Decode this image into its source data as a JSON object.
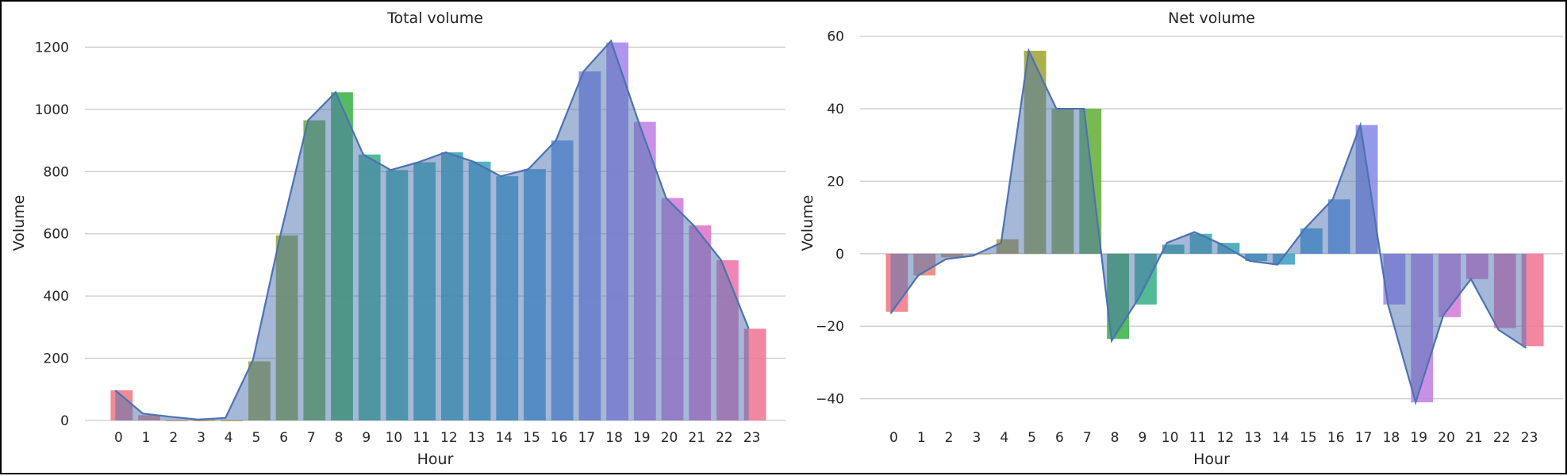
{
  "chart_data": [
    {
      "type": "bar",
      "title": "Total volume",
      "xlabel": "Hour",
      "ylabel": "Volume",
      "categories": [
        "0",
        "1",
        "2",
        "3",
        "4",
        "5",
        "6",
        "7",
        "8",
        "9",
        "10",
        "11",
        "12",
        "13",
        "14",
        "15",
        "16",
        "17",
        "18",
        "19",
        "20",
        "21",
        "22",
        "23"
      ],
      "values": [
        97,
        17,
        0,
        0,
        0,
        190,
        595,
        965,
        1055,
        855,
        805,
        830,
        862,
        832,
        785,
        808,
        900,
        1122,
        1215,
        960,
        715,
        627,
        515,
        295
      ],
      "line": [
        97,
        22,
        12,
        3,
        8,
        195,
        598,
        965,
        1055,
        855,
        805,
        830,
        862,
        832,
        785,
        808,
        900,
        1122,
        1220,
        960,
        715,
        627,
        515,
        295
      ],
      "ylim": [
        0,
        1270
      ],
      "yticks": [
        0,
        200,
        400,
        600,
        800,
        1000,
        1200
      ],
      "grid": "horizontal",
      "colors": [
        "#f07c8c",
        "#e58a7b",
        "#db9260",
        "#d1a05a",
        "#bba03a",
        "#a4a63a",
        "#8eab3a",
        "#6ab13e",
        "#42b44f",
        "#3fb28c",
        "#3eafa0",
        "#3eadad",
        "#3faab5",
        "#40a8bf",
        "#43a3c9",
        "#4b9fd4",
        "#6499e0",
        "#8a8ee7",
        "#a78bec",
        "#c285e4",
        "#d57fd8",
        "#e27ac9",
        "#ee79ae",
        "#f17a98"
      ]
    },
    {
      "type": "bar",
      "title": "Net volume",
      "xlabel": "Hour",
      "ylabel": "Volume",
      "categories": [
        "0",
        "1",
        "2",
        "3",
        "4",
        "5",
        "6",
        "7",
        "8",
        "9",
        "10",
        "11",
        "12",
        "13",
        "14",
        "15",
        "16",
        "17",
        "18",
        "19",
        "20",
        "21",
        "22",
        "23"
      ],
      "values": [
        -16,
        -6,
        -1,
        0,
        4,
        56,
        40,
        40,
        -23.5,
        -14,
        2.5,
        5.5,
        3,
        -2,
        -3,
        7,
        15,
        35.5,
        -14,
        -41,
        -17.5,
        -7,
        -20.5,
        -25.5
      ],
      "line": [
        -16.5,
        -6,
        -1.5,
        -0.5,
        3,
        56,
        40,
        40,
        -24,
        -12,
        3,
        6,
        2.5,
        -2,
        -3,
        7,
        15,
        35.5,
        -14,
        -41,
        -17,
        -7,
        -21,
        -26
      ],
      "ylim": [
        -46,
        63
      ],
      "yticks": [
        -40,
        -20,
        0,
        20,
        40,
        60
      ],
      "grid": "horizontal",
      "colors": [
        "#f07c8c",
        "#e58a7b",
        "#db9260",
        "#d1a05a",
        "#bba03a",
        "#a4a63a",
        "#8eab3a",
        "#6ab13e",
        "#42b44f",
        "#3fb28c",
        "#3eafa0",
        "#3eadad",
        "#3faab5",
        "#40a8bf",
        "#43a3c9",
        "#4b9fd4",
        "#6499e0",
        "#8a8ee7",
        "#a78bec",
        "#c285e4",
        "#d57fd8",
        "#e27ac9",
        "#ee79ae",
        "#f17a98"
      ]
    }
  ]
}
